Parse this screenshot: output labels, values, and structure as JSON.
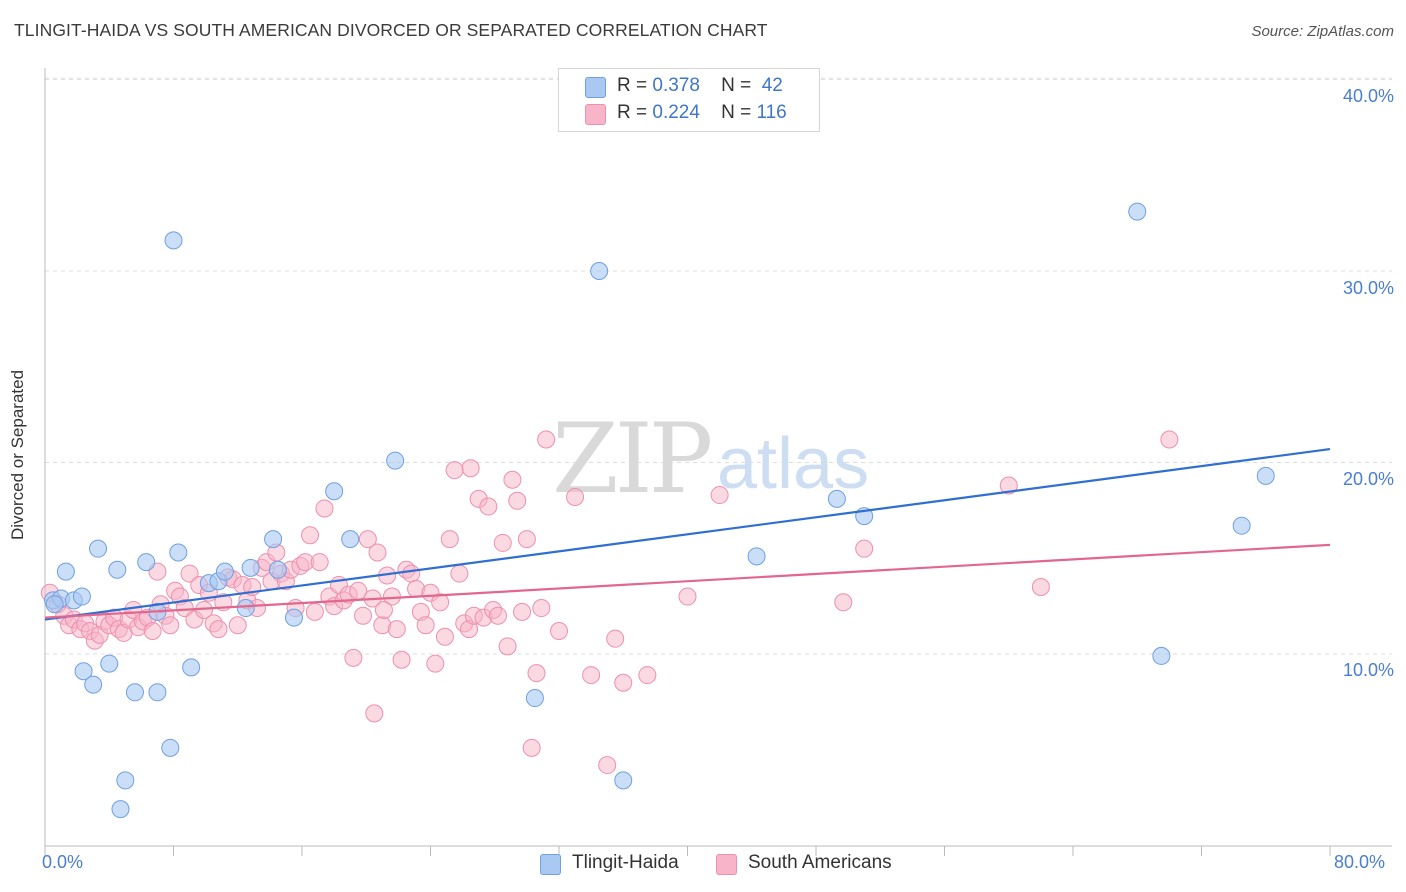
{
  "title": "TLINGIT-HAIDA VS SOUTH AMERICAN DIVORCED OR SEPARATED CORRELATION CHART",
  "source": "Source: ZipAtlas.com",
  "watermark": {
    "zip": "ZIP",
    "atlas": "atlas"
  },
  "legend_top": {
    "r_label": "R =",
    "n_label": "N =",
    "rows": [
      {
        "r": "0.378",
        "n": "42",
        "color": "#a9c8f2"
      },
      {
        "r": "0.224",
        "n": "116",
        "color": "#f8b4c8"
      }
    ]
  },
  "chart_data": {
    "type": "scatter",
    "title": "TLINGIT-HAIDA VS SOUTH AMERICAN DIVORCED OR SEPARATED CORRELATION CHART",
    "xlabel": "",
    "ylabel": "Divorced or Separated",
    "xlim": [
      0,
      80
    ],
    "ylim": [
      0,
      42
    ],
    "x_tick_labels": [
      "0.0%",
      "80.0%"
    ],
    "y_ticks": [
      10,
      20,
      30,
      40
    ],
    "y_tick_labels": [
      "10.0%",
      "20.0%",
      "30.0%",
      "40.0%"
    ],
    "grid": "horizontal dashed",
    "legend_position": "top-center",
    "series": [
      {
        "name": "Tlingit-Haida",
        "color": "#6fa0e0",
        "fill": "#a9c8f2",
        "line_color": "#2e6fd1",
        "R": 0.378,
        "N": 42,
        "trend": {
          "x": [
            0,
            80
          ],
          "y": [
            11.8,
            20.7
          ]
        },
        "points": [
          [
            0.5,
            12.8
          ],
          [
            1.0,
            12.9
          ],
          [
            1.3,
            14.3
          ],
          [
            1.8,
            12.8
          ],
          [
            2.3,
            13.0
          ],
          [
            2.4,
            9.1
          ],
          [
            3.0,
            8.4
          ],
          [
            3.3,
            15.5
          ],
          [
            4.0,
            9.5
          ],
          [
            4.5,
            14.4
          ],
          [
            5.6,
            8.0
          ],
          [
            6.3,
            14.8
          ],
          [
            7.0,
            8.0
          ],
          [
            7.0,
            12.2
          ],
          [
            7.8,
            5.1
          ],
          [
            8.0,
            31.6
          ],
          [
            8.3,
            15.3
          ],
          [
            9.1,
            9.3
          ],
          [
            10.2,
            13.7
          ],
          [
            10.8,
            13.8
          ],
          [
            11.2,
            14.3
          ],
          [
            12.5,
            12.4
          ],
          [
            12.8,
            14.5
          ],
          [
            14.2,
            16.0
          ],
          [
            14.5,
            14.4
          ],
          [
            15.5,
            11.9
          ],
          [
            18.0,
            18.5
          ],
          [
            19.0,
            16.0
          ],
          [
            21.8,
            20.1
          ],
          [
            5.0,
            3.4
          ],
          [
            4.7,
            1.9
          ],
          [
            30.5,
            7.7
          ],
          [
            34.5,
            30.0
          ],
          [
            36.0,
            3.4
          ],
          [
            44.3,
            15.1
          ],
          [
            49.3,
            18.1
          ],
          [
            51.0,
            17.2
          ],
          [
            68.0,
            33.1
          ],
          [
            69.5,
            9.9
          ],
          [
            74.5,
            16.7
          ],
          [
            76.0,
            19.3
          ],
          [
            0.6,
            12.6
          ]
        ]
      },
      {
        "name": "South Americans",
        "color": "#ee8fae",
        "fill": "#f8b4c8",
        "line_color": "#e2678f",
        "R": 0.224,
        "N": 116,
        "trend": {
          "x": [
            0,
            80
          ],
          "y": [
            11.9,
            15.7
          ]
        },
        "points": [
          [
            0.3,
            13.2
          ],
          [
            0.8,
            12.6
          ],
          [
            1.2,
            12.0
          ],
          [
            1.5,
            11.5
          ],
          [
            1.8,
            11.8
          ],
          [
            2.2,
            11.3
          ],
          [
            2.5,
            11.6
          ],
          [
            2.8,
            11.2
          ],
          [
            3.1,
            10.7
          ],
          [
            3.4,
            11.0
          ],
          [
            3.7,
            11.7
          ],
          [
            4.0,
            11.5
          ],
          [
            4.3,
            11.9
          ],
          [
            4.6,
            11.3
          ],
          [
            4.9,
            11.1
          ],
          [
            5.2,
            11.8
          ],
          [
            5.5,
            12.3
          ],
          [
            5.8,
            11.4
          ],
          [
            6.1,
            11.7
          ],
          [
            6.4,
            11.9
          ],
          [
            6.7,
            11.2
          ],
          [
            7.0,
            14.3
          ],
          [
            7.2,
            12.6
          ],
          [
            7.5,
            12.0
          ],
          [
            7.8,
            11.5
          ],
          [
            8.1,
            13.3
          ],
          [
            8.4,
            13.0
          ],
          [
            8.7,
            12.4
          ],
          [
            9.0,
            14.2
          ],
          [
            9.3,
            11.8
          ],
          [
            9.6,
            13.6
          ],
          [
            9.9,
            12.3
          ],
          [
            10.2,
            13.2
          ],
          [
            10.5,
            11.6
          ],
          [
            10.8,
            11.3
          ],
          [
            11.1,
            12.7
          ],
          [
            11.4,
            14.0
          ],
          [
            11.7,
            13.9
          ],
          [
            12.0,
            11.5
          ],
          [
            12.3,
            13.6
          ],
          [
            12.6,
            12.8
          ],
          [
            12.9,
            13.5
          ],
          [
            13.2,
            12.4
          ],
          [
            13.5,
            14.5
          ],
          [
            13.8,
            14.8
          ],
          [
            14.1,
            13.8
          ],
          [
            14.4,
            15.3
          ],
          [
            14.7,
            14.2
          ],
          [
            15.0,
            13.8
          ],
          [
            15.3,
            14.4
          ],
          [
            15.6,
            12.4
          ],
          [
            15.9,
            14.6
          ],
          [
            16.2,
            14.8
          ],
          [
            16.5,
            16.2
          ],
          [
            16.8,
            12.2
          ],
          [
            17.1,
            14.8
          ],
          [
            17.4,
            17.6
          ],
          [
            17.7,
            13.0
          ],
          [
            18.0,
            12.5
          ],
          [
            18.3,
            13.6
          ],
          [
            18.6,
            12.8
          ],
          [
            18.9,
            13.1
          ],
          [
            19.2,
            9.8
          ],
          [
            19.5,
            13.3
          ],
          [
            19.8,
            12.0
          ],
          [
            20.1,
            16.0
          ],
          [
            20.4,
            12.9
          ],
          [
            20.7,
            15.3
          ],
          [
            21.0,
            11.5
          ],
          [
            21.3,
            14.1
          ],
          [
            21.6,
            13.0
          ],
          [
            21.9,
            11.3
          ],
          [
            22.2,
            9.7
          ],
          [
            22.5,
            14.4
          ],
          [
            22.8,
            14.2
          ],
          [
            23.1,
            13.4
          ],
          [
            23.4,
            12.2
          ],
          [
            23.7,
            11.5
          ],
          [
            24.0,
            13.2
          ],
          [
            24.3,
            9.5
          ],
          [
            24.6,
            12.7
          ],
          [
            24.9,
            10.9
          ],
          [
            25.2,
            16.0
          ],
          [
            25.5,
            19.6
          ],
          [
            25.8,
            14.2
          ],
          [
            26.1,
            11.6
          ],
          [
            26.4,
            11.3
          ],
          [
            26.7,
            12.0
          ],
          [
            27.0,
            18.1
          ],
          [
            27.3,
            11.9
          ],
          [
            27.6,
            17.7
          ],
          [
            27.9,
            12.3
          ],
          [
            28.2,
            12.0
          ],
          [
            28.5,
            15.8
          ],
          [
            28.8,
            10.4
          ],
          [
            29.1,
            19.1
          ],
          [
            29.4,
            18.0
          ],
          [
            29.7,
            12.2
          ],
          [
            30.0,
            16.0
          ],
          [
            30.3,
            5.1
          ],
          [
            30.6,
            9.0
          ],
          [
            30.9,
            12.4
          ],
          [
            31.2,
            21.2
          ],
          [
            32.0,
            11.2
          ],
          [
            33.0,
            18.2
          ],
          [
            34.0,
            8.9
          ],
          [
            35.0,
            4.2
          ],
          [
            35.5,
            10.8
          ],
          [
            36.0,
            8.5
          ],
          [
            37.5,
            8.9
          ],
          [
            40.0,
            13.0
          ],
          [
            42.0,
            18.3
          ],
          [
            49.7,
            12.7
          ],
          [
            51.0,
            15.5
          ],
          [
            60.0,
            18.8
          ],
          [
            62.0,
            13.5
          ],
          [
            70.0,
            21.2
          ],
          [
            20.5,
            6.9
          ],
          [
            26.5,
            19.7
          ],
          [
            21.1,
            12.3
          ]
        ]
      }
    ]
  }
}
